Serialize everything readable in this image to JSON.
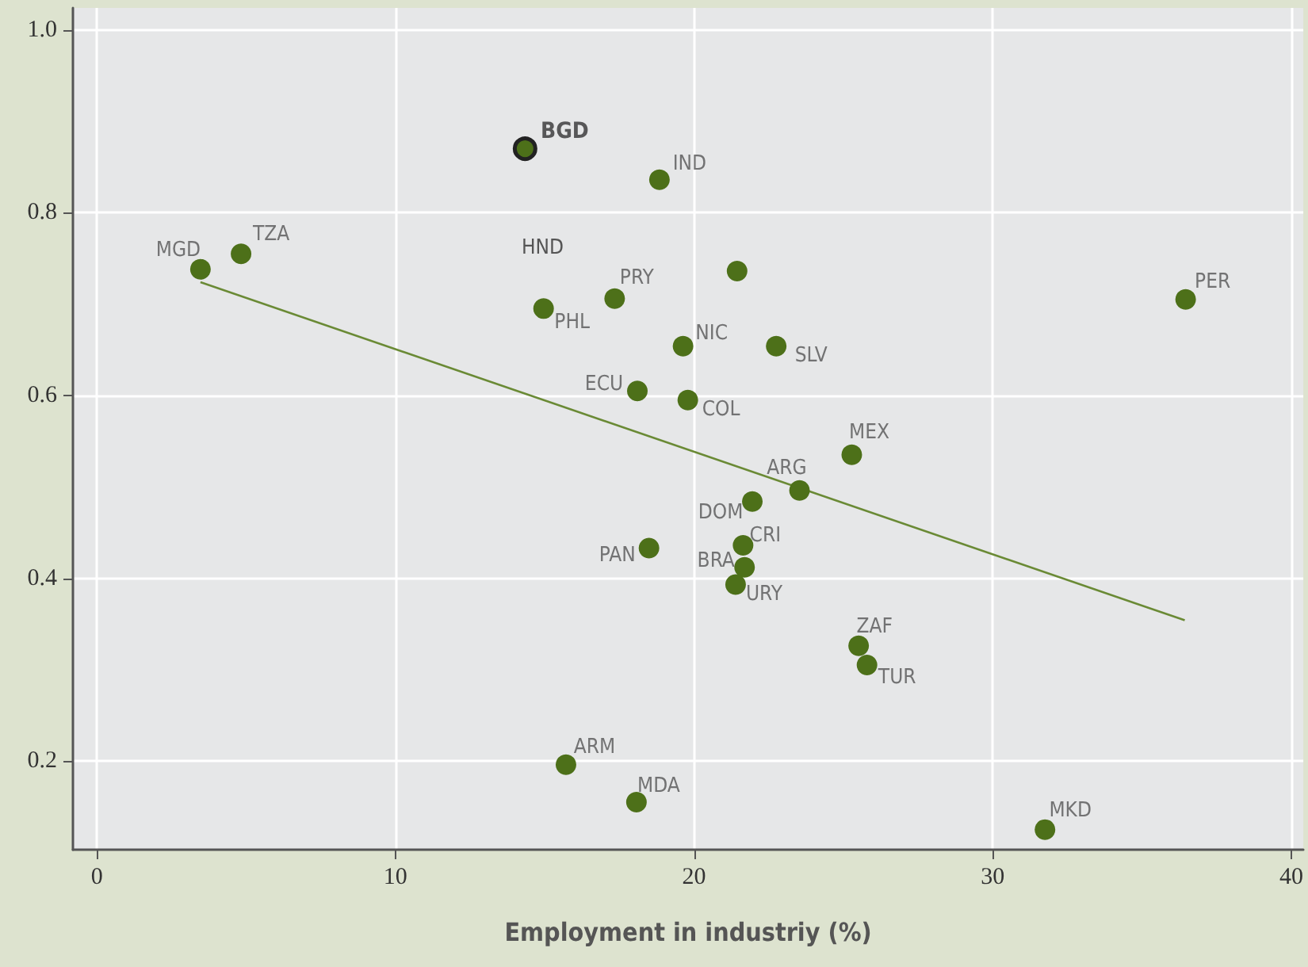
{
  "chart_data": {
    "type": "scatter",
    "xlabel": "Employment in industriy (%)",
    "xlim": [
      -0.8,
      40.4
    ],
    "ylim": [
      0.103,
      1.024
    ],
    "xticks": [
      0,
      10,
      20,
      30,
      40
    ],
    "yticks": [
      0.2,
      0.4,
      0.6,
      0.8,
      {
        "value": 1,
        "label": "1.0"
      }
    ],
    "grid": true,
    "marker": "circle",
    "series": [
      {
        "color": "#4d7019",
        "x": [
          18.84,
          3.47,
          4.83,
          21.44,
          17.34,
          14.96,
          19.63,
          22.75,
          18.1,
          19.79,
          25.28,
          23.53,
          36.46,
          21.95,
          21.64,
          21.69,
          21.39,
          18.49,
          25.51,
          25.79,
          15.71,
          18.07,
          31.75
        ],
        "values": [
          0.836,
          0.738,
          0.755,
          0.736,
          0.706,
          0.695,
          0.654,
          0.654,
          0.605,
          0.595,
          0.535,
          0.496,
          0.705,
          0.484,
          0.436,
          0.412,
          0.393,
          0.433,
          0.326,
          0.305,
          0.196,
          0.155,
          0.125
        ]
      },
      {
        "color": "#4d7019",
        "x": [
          14.34
        ],
        "values": [
          0.87
        ]
      },
      {
        "type": "line",
        "marker": "none",
        "color": "#6a8a35",
        "x": [
          3.47,
          36.43
        ],
        "values": [
          0.724,
          0.354
        ]
      }
    ],
    "annotations": [
      {
        "text": "BGD",
        "x": 14.34,
        "y": 0.87
      },
      {
        "text": "IND",
        "x": 18.84,
        "y": 0.836
      },
      {
        "text": "MGD",
        "x": 3.47,
        "y": 0.738
      },
      {
        "text": "TZA",
        "x": 4.83,
        "y": 0.755
      },
      "HND",
      {
        "text": "PRY",
        "x": 17.34,
        "y": 0.706
      },
      {
        "text": "PHL",
        "x": 14.96,
        "y": 0.695
      },
      {
        "text": "NIC",
        "x": 19.63,
        "y": 0.654
      },
      {
        "text": "SLV",
        "x": 22.75,
        "y": 0.654
      },
      {
        "text": "ECU",
        "x": 18.1,
        "y": 0.605
      },
      {
        "text": "COL",
        "x": 19.79,
        "y": 0.595
      },
      {
        "text": "MEX",
        "x": 25.28,
        "y": 0.535
      },
      {
        "text": "ARG",
        "x": 23.53,
        "y": 0.496
      },
      {
        "text": "PER",
        "x": 36.46,
        "y": 0.705
      },
      {
        "text": "DOM",
        "x": 21.95,
        "y": 0.484
      },
      {
        "text": "CRI",
        "x": 21.64,
        "y": 0.436
      },
      {
        "text": "BRA",
        "x": 21.69,
        "y": 0.412
      },
      {
        "text": "URY",
        "x": 21.39,
        "y": 0.393
      },
      {
        "text": "PAN",
        "x": 18.49,
        "y": 0.433
      },
      {
        "text": "ZAF",
        "x": 25.51,
        "y": 0.326
      },
      {
        "text": "TUR",
        "x": 25.79,
        "y": 0.305
      },
      {
        "text": "ARM",
        "x": 15.71,
        "y": 0.196
      },
      {
        "text": "MDA",
        "x": 18.07,
        "y": 0.155
      },
      {
        "text": "MKD",
        "x": 31.75,
        "y": 0.125
      }
    ]
  }
}
